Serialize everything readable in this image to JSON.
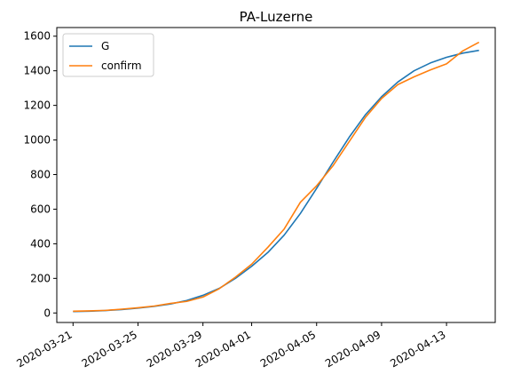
{
  "chart_data": {
    "type": "line",
    "title": "PA-Luzerne",
    "xlabel": "",
    "ylabel": "",
    "x": [
      "2020-03-21",
      "2020-03-22",
      "2020-03-23",
      "2020-03-24",
      "2020-03-25",
      "2020-03-26",
      "2020-03-27",
      "2020-03-28",
      "2020-03-29",
      "2020-03-30",
      "2020-03-31",
      "2020-04-01",
      "2020-04-02",
      "2020-04-03",
      "2020-04-04",
      "2020-04-05",
      "2020-04-06",
      "2020-04-07",
      "2020-04-08",
      "2020-04-09",
      "2020-04-10",
      "2020-04-11",
      "2020-04-12",
      "2020-04-13",
      "2020-04-14",
      "2020-04-15"
    ],
    "x_ticks": [
      "2020-03-21",
      "2020-03-25",
      "2020-03-29",
      "2020-04-01",
      "2020-04-05",
      "2020-04-09",
      "2020-04-13"
    ],
    "y_ticks": [
      0,
      200,
      400,
      600,
      800,
      1000,
      1200,
      1400,
      1600
    ],
    "ylim": [
      -55,
      1650
    ],
    "xlim": [
      "2020-03-20",
      "2020-04-16"
    ],
    "grid": false,
    "legend_position": "top-left",
    "series": [
      {
        "name": "G",
        "color": "#1f77b4",
        "values": [
          8,
          10,
          14,
          20,
          28,
          38,
          52,
          72,
          102,
          142,
          200,
          270,
          350,
          450,
          575,
          720,
          870,
          1015,
          1145,
          1250,
          1335,
          1400,
          1445,
          1478,
          1502,
          1518
        ]
      },
      {
        "name": "confirm",
        "color": "#ff7f0e",
        "values": [
          10,
          12,
          15,
          22,
          30,
          40,
          55,
          67,
          92,
          140,
          207,
          282,
          380,
          485,
          640,
          735,
          850,
          990,
          1130,
          1240,
          1320,
          1365,
          1405,
          1440,
          1515,
          1565
        ]
      }
    ]
  }
}
